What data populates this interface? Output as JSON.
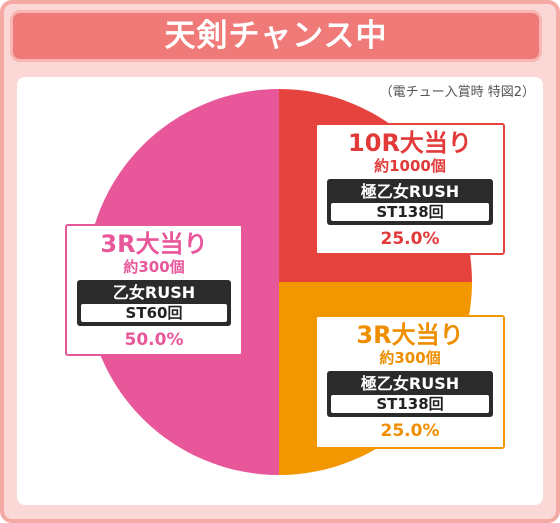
{
  "title": "天剣チャンス中",
  "note": "（電チュー入賞時 特図2）",
  "colors": {
    "pink": "#e8579a",
    "red": "#e6433f",
    "orange": "#f39700"
  },
  "chart_data": {
    "type": "pie",
    "slices": [
      {
        "label": "10R大当り",
        "sub": "約1000個",
        "mode": "極乙女RUSH",
        "st": "ST138回",
        "value": 25.0,
        "percent_label": "25.0%",
        "color": "#e6433f"
      },
      {
        "label": "3R大当り",
        "sub": "約300個",
        "mode": "極乙女RUSH",
        "st": "ST138回",
        "value": 25.0,
        "percent_label": "25.0%",
        "color": "#f39700"
      },
      {
        "label": "3R大当り",
        "sub": "約300個",
        "mode": "乙女RUSH",
        "st": "ST60回",
        "value": 50.0,
        "percent_label": "50.0%",
        "color": "#e8579a"
      }
    ]
  }
}
